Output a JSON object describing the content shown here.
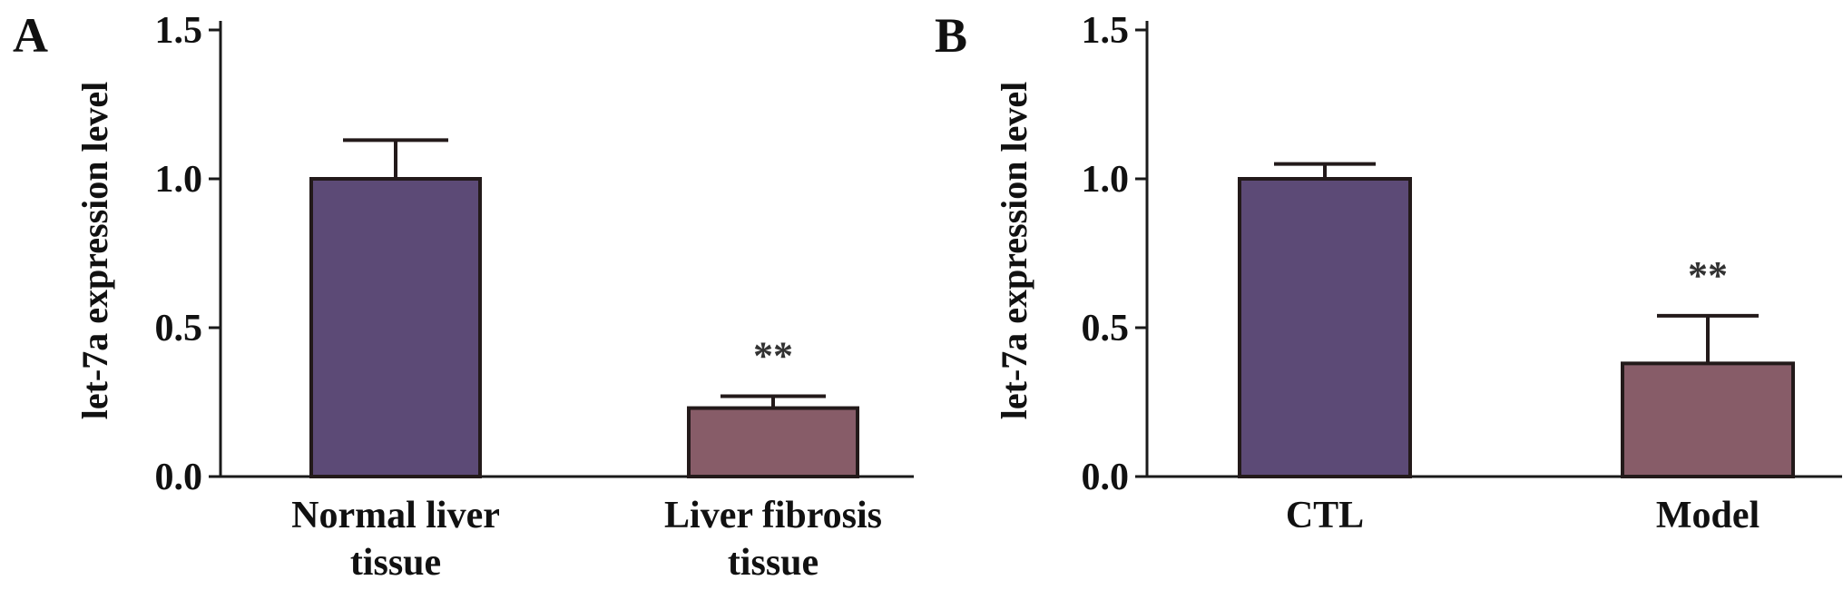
{
  "chart_data": [
    {
      "type": "bar",
      "panel_label": "A",
      "categories": [
        "Normal liver tissue",
        "Liver fibrosis tissue"
      ],
      "category_lines": [
        [
          "Normal liver",
          "tissue"
        ],
        [
          "Liver fibrosis",
          "tissue"
        ]
      ],
      "values": [
        1.0,
        0.23
      ],
      "errors": [
        0.13,
        0.04
      ],
      "significance": [
        "",
        "**"
      ],
      "colors": [
        "#5c4a76",
        "#875c68"
      ],
      "title": "",
      "xlabel": "",
      "ylabel": "let-7a expression level",
      "ylim": [
        0.0,
        1.5
      ],
      "yticks": [
        "0.0",
        "0.5",
        "1.0",
        "1.5"
      ],
      "grid": false
    },
    {
      "type": "bar",
      "panel_label": "B",
      "categories": [
        "CTL",
        "Model"
      ],
      "category_lines": [
        [
          "CTL"
        ],
        [
          "Model"
        ]
      ],
      "values": [
        1.0,
        0.38
      ],
      "errors": [
        0.05,
        0.16
      ],
      "significance": [
        "",
        "**"
      ],
      "colors": [
        "#5c4a76",
        "#875c68"
      ],
      "title": "",
      "xlabel": "",
      "ylabel": "let-7a expression level",
      "ylim": [
        0.0,
        1.5
      ],
      "yticks": [
        "0.0",
        "0.5",
        "1.0",
        "1.5"
      ],
      "grid": false
    }
  ]
}
